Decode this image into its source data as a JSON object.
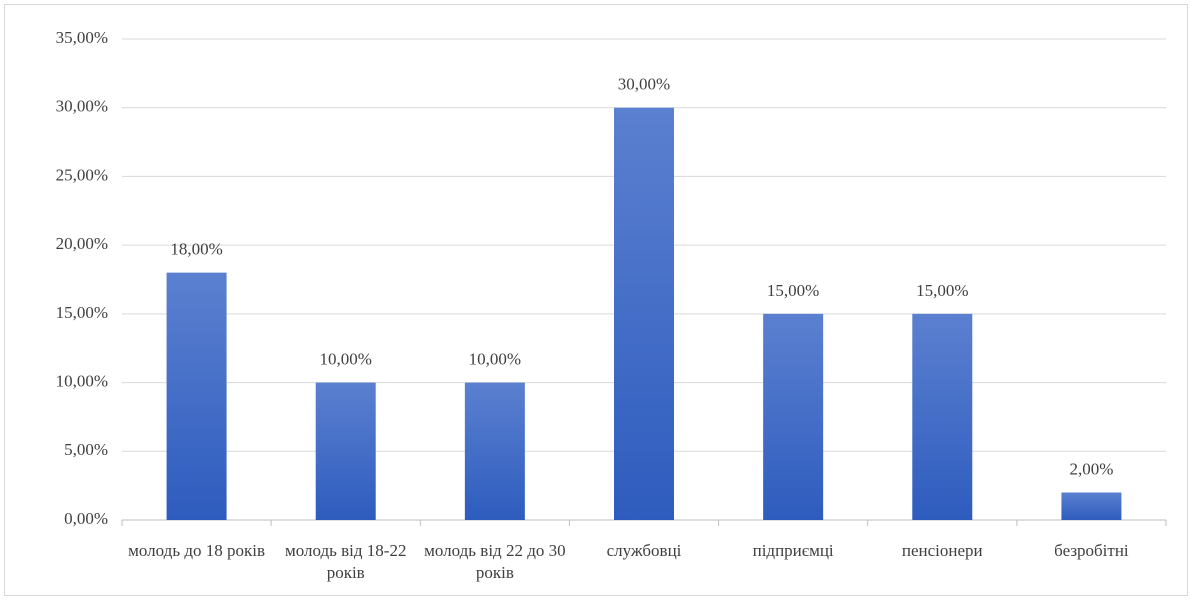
{
  "chart_data": {
    "type": "bar",
    "categories": [
      "молодь до 18 років",
      "молодь від 18-22 років",
      "молодь від 22 до 30 років",
      "службовці",
      "підприємці",
      "пенсіонери",
      "безробітні"
    ],
    "values": [
      18,
      10,
      10,
      30,
      15,
      15,
      2
    ],
    "value_labels": [
      "18,00%",
      "10,00%",
      "10,00%",
      "30,00%",
      "15,00%",
      "15,00%",
      "2,00%"
    ],
    "color": "#4472c4",
    "ylim": [
      0,
      35
    ],
    "yticks": [
      {
        "value": 0,
        "label": "0,00%"
      },
      {
        "value": 5,
        "label": "5,00%"
      },
      {
        "value": 10,
        "label": "10,00%"
      },
      {
        "value": 15,
        "label": "15,00%"
      },
      {
        "value": 20,
        "label": "20,00%"
      },
      {
        "value": 25,
        "label": "25,00%"
      },
      {
        "value": 30,
        "label": "30,00%"
      },
      {
        "value": 35,
        "label": "35,00%"
      }
    ],
    "grid": true
  }
}
